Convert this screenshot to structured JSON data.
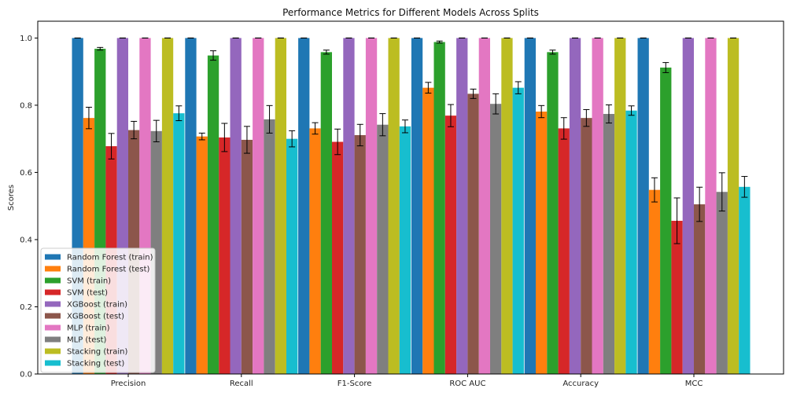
{
  "chart_data": {
    "type": "bar",
    "title": "Performance Metrics for Different Models Across Splits",
    "xlabel": "",
    "ylabel": "Scores",
    "ylim": [
      0,
      1.05
    ],
    "yticks": [
      "0.0",
      "0.2",
      "0.4",
      "0.6",
      "0.8",
      "1.0"
    ],
    "ytick_values": [
      0.0,
      0.2,
      0.4,
      0.6,
      0.8,
      1.0
    ],
    "grid": false,
    "legend_position": "lower-left",
    "categories": [
      "Precision",
      "Recall",
      "F1-Score",
      "ROC AUC",
      "Accuracy",
      "MCC"
    ],
    "series": [
      {
        "name": "Random Forest (train)",
        "color": "#1f77b4",
        "values": [
          1.0,
          1.0,
          1.0,
          1.0,
          1.0,
          1.0
        ],
        "errors": [
          0,
          0,
          0,
          0,
          0,
          0
        ]
      },
      {
        "name": "Random Forest (test)",
        "color": "#ff7f0e",
        "values": [
          0.762,
          0.707,
          0.731,
          0.852,
          0.781,
          0.548
        ],
        "errors": [
          0.032,
          0.01,
          0.017,
          0.016,
          0.018,
          0.036
        ]
      },
      {
        "name": "SVM (train)",
        "color": "#2ca02c",
        "values": [
          0.968,
          0.948,
          0.958,
          0.988,
          0.958,
          0.912
        ],
        "errors": [
          0.004,
          0.014,
          0.006,
          0.003,
          0.006,
          0.015
        ]
      },
      {
        "name": "SVM (test)",
        "color": "#d62728",
        "values": [
          0.678,
          0.704,
          0.691,
          0.769,
          0.731,
          0.456
        ],
        "errors": [
          0.038,
          0.042,
          0.038,
          0.033,
          0.032,
          0.068
        ]
      },
      {
        "name": "XGBoost (train)",
        "color": "#9467bd",
        "values": [
          1.0,
          1.0,
          1.0,
          1.0,
          1.0,
          1.0
        ],
        "errors": [
          0,
          0,
          0,
          0,
          0,
          0
        ]
      },
      {
        "name": "XGBoost (test)",
        "color": "#8c564b",
        "values": [
          0.726,
          0.697,
          0.711,
          0.834,
          0.762,
          0.505
        ],
        "errors": [
          0.026,
          0.04,
          0.032,
          0.014,
          0.025,
          0.051
        ]
      },
      {
        "name": "MLP (train)",
        "color": "#e377c2",
        "values": [
          1.0,
          1.0,
          1.0,
          1.0,
          1.0,
          1.0
        ],
        "errors": [
          0,
          0,
          0,
          0,
          0,
          0
        ]
      },
      {
        "name": "MLP (test)",
        "color": "#7f7f7f",
        "values": [
          0.723,
          0.758,
          0.742,
          0.804,
          0.774,
          0.542
        ],
        "errors": [
          0.032,
          0.041,
          0.033,
          0.03,
          0.027,
          0.057
        ]
      },
      {
        "name": "Stacking (train)",
        "color": "#bcbd22",
        "values": [
          1.0,
          1.0,
          1.0,
          1.0,
          1.0,
          1.0
        ],
        "errors": [
          0,
          0,
          0,
          0,
          0,
          0
        ]
      },
      {
        "name": "Stacking (test)",
        "color": "#17becf",
        "values": [
          0.776,
          0.7,
          0.737,
          0.852,
          0.784,
          0.557
        ],
        "errors": [
          0.022,
          0.024,
          0.019,
          0.018,
          0.014,
          0.031
        ]
      }
    ]
  }
}
